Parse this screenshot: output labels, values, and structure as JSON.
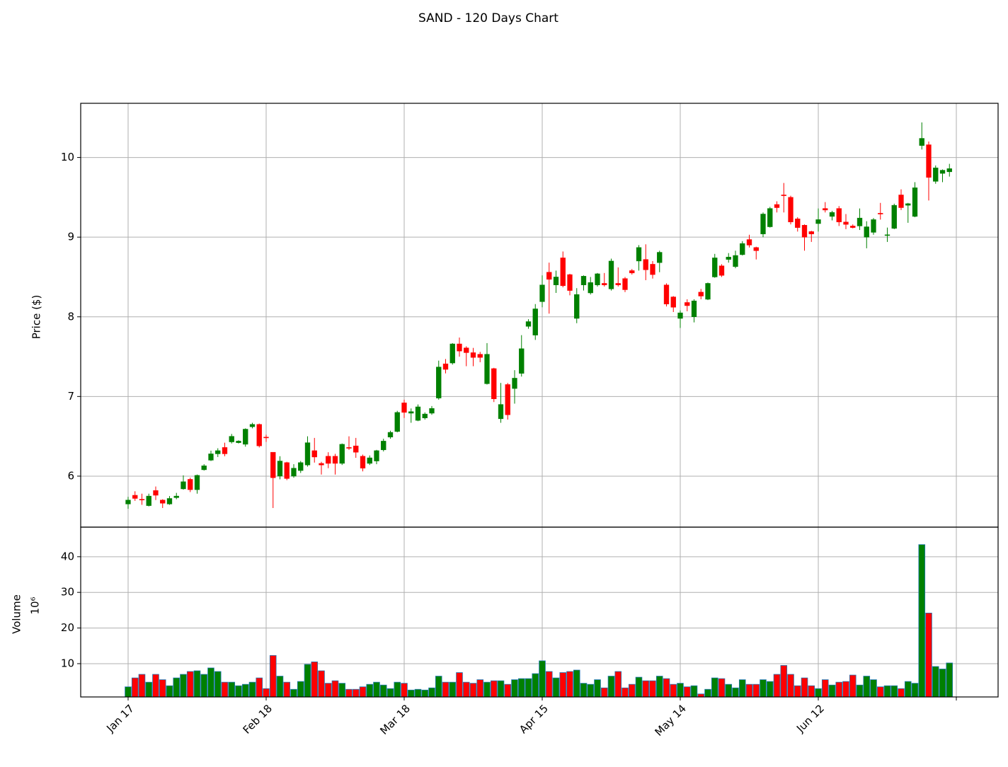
{
  "chart_data": [
    {
      "type": "candlestick",
      "title": "SAND - 120 Days Chart",
      "ylabel": "Price ($)",
      "open": [
        5.65,
        5.76,
        5.71,
        5.63,
        5.82,
        5.7,
        5.65,
        5.73,
        5.84,
        5.96,
        5.83,
        6.08,
        6.2,
        6.28,
        6.36,
        6.43,
        6.42,
        6.4,
        6.62,
        6.65,
        6.49,
        6.3,
        6.0,
        6.17,
        6.0,
        6.07,
        6.14,
        6.32,
        6.16,
        6.25,
        6.25,
        6.16,
        6.36,
        6.38,
        6.25,
        6.16,
        6.19,
        6.33,
        6.49,
        6.56,
        6.92,
        6.79,
        6.7,
        6.73,
        6.79,
        6.98,
        7.41,
        7.42,
        7.66,
        7.61,
        7.55,
        7.53,
        7.16,
        7.35,
        6.72,
        7.15,
        7.1,
        7.29,
        7.88,
        7.77,
        8.19,
        8.56,
        8.4,
        8.74,
        8.53,
        7.98,
        8.4,
        8.3,
        8.4,
        8.42,
        8.35,
        8.42,
        8.48,
        8.58,
        8.7,
        8.72,
        8.66,
        8.68,
        8.4,
        8.25,
        7.98,
        8.18,
        8.0,
        8.31,
        8.22,
        8.5,
        8.64,
        8.72,
        8.63,
        8.78,
        8.97,
        8.87,
        9.04,
        9.13,
        9.41,
        9.53,
        9.5,
        9.23,
        9.15,
        9.07,
        9.17,
        9.36,
        9.26,
        9.36,
        9.19,
        9.14,
        9.14,
        9.0,
        9.06,
        9.3,
        9.02,
        9.11,
        9.53,
        9.4,
        9.26,
        10.15,
        10.16,
        9.7,
        9.8,
        9.82
      ],
      "high": [
        5.74,
        5.81,
        5.78,
        5.78,
        5.87,
        5.71,
        5.75,
        5.79,
        6.01,
        5.98,
        6.02,
        6.15,
        6.32,
        6.35,
        6.42,
        6.53,
        6.45,
        6.6,
        6.67,
        6.66,
        6.52,
        6.3,
        6.25,
        6.18,
        6.15,
        6.19,
        6.5,
        6.48,
        6.18,
        6.3,
        6.28,
        6.41,
        6.5,
        6.48,
        6.27,
        6.26,
        6.33,
        6.47,
        6.57,
        6.82,
        6.96,
        6.85,
        6.9,
        6.8,
        6.88,
        7.45,
        7.47,
        7.67,
        7.74,
        7.63,
        7.61,
        7.56,
        7.67,
        7.36,
        7.17,
        7.17,
        7.33,
        7.77,
        7.97,
        8.16,
        8.52,
        8.68,
        8.58,
        8.82,
        8.54,
        8.36,
        8.52,
        8.5,
        8.55,
        8.55,
        8.73,
        8.62,
        8.5,
        8.6,
        8.9,
        8.91,
        8.7,
        8.83,
        8.42,
        8.26,
        8.08,
        8.22,
        8.22,
        8.35,
        8.43,
        8.79,
        8.66,
        8.8,
        8.83,
        8.95,
        9.03,
        8.88,
        9.31,
        9.38,
        9.45,
        9.68,
        9.52,
        9.25,
        9.16,
        9.08,
        9.36,
        9.44,
        9.33,
        9.39,
        9.29,
        9.16,
        9.36,
        9.2,
        9.24,
        9.43,
        9.12,
        9.42,
        9.6,
        9.43,
        9.69,
        10.44,
        10.2,
        9.9,
        9.85,
        9.92
      ],
      "low": [
        5.59,
        5.69,
        5.64,
        5.62,
        5.7,
        5.6,
        5.64,
        5.71,
        5.83,
        5.8,
        5.78,
        6.07,
        6.19,
        6.24,
        6.25,
        6.41,
        6.41,
        6.37,
        6.6,
        6.36,
        6.43,
        5.6,
        5.96,
        5.95,
        5.98,
        6.04,
        6.12,
        6.17,
        6.02,
        6.1,
        6.02,
        6.14,
        6.33,
        6.23,
        6.06,
        6.14,
        6.15,
        6.31,
        6.47,
        6.55,
        6.73,
        6.67,
        6.69,
        6.71,
        6.77,
        6.96,
        7.29,
        7.4,
        7.5,
        7.38,
        7.38,
        7.43,
        7.15,
        6.93,
        6.67,
        6.71,
        6.91,
        7.25,
        7.85,
        7.71,
        8.12,
        8.04,
        8.3,
        8.37,
        8.27,
        7.92,
        8.33,
        8.28,
        8.38,
        8.38,
        8.33,
        8.38,
        8.31,
        8.53,
        8.58,
        8.46,
        8.48,
        8.56,
        8.13,
        8.06,
        7.86,
        8.07,
        7.93,
        8.22,
        8.21,
        8.49,
        8.5,
        8.68,
        8.61,
        8.77,
        8.87,
        8.72,
        9.0,
        9.12,
        9.31,
        9.31,
        9.16,
        9.07,
        8.83,
        8.94,
        9.07,
        9.31,
        9.21,
        9.14,
        9.1,
        9.11,
        9.09,
        8.86,
        9.03,
        9.22,
        8.94,
        9.1,
        9.34,
        9.18,
        9.25,
        10.1,
        9.46,
        9.67,
        9.69,
        9.76
      ],
      "close": [
        5.7,
        5.72,
        5.7,
        5.75,
        5.76,
        5.66,
        5.72,
        5.75,
        5.93,
        5.83,
        6.01,
        6.13,
        6.28,
        6.32,
        6.28,
        6.5,
        6.44,
        6.59,
        6.65,
        6.38,
        6.48,
        5.98,
        6.19,
        5.97,
        6.1,
        6.17,
        6.42,
        6.24,
        6.14,
        6.16,
        6.16,
        6.4,
        6.35,
        6.3,
        6.1,
        6.23,
        6.32,
        6.44,
        6.55,
        6.8,
        6.8,
        6.81,
        6.87,
        6.78,
        6.85,
        7.37,
        7.34,
        7.66,
        7.57,
        7.55,
        7.49,
        7.49,
        7.53,
        6.97,
        6.9,
        6.77,
        7.23,
        7.6,
        7.94,
        8.1,
        8.4,
        8.47,
        8.5,
        8.39,
        8.33,
        8.28,
        8.51,
        8.43,
        8.54,
        8.4,
        8.7,
        8.4,
        8.34,
        8.55,
        8.87,
        8.59,
        8.53,
        8.81,
        8.16,
        8.12,
        8.05,
        8.14,
        8.2,
        8.26,
        8.42,
        8.74,
        8.52,
        8.75,
        8.77,
        8.92,
        8.9,
        8.83,
        9.29,
        9.36,
        9.37,
        9.52,
        9.19,
        9.12,
        9.0,
        9.04,
        9.22,
        9.34,
        9.31,
        9.19,
        9.16,
        9.12,
        9.24,
        9.13,
        9.22,
        9.29,
        9.03,
        9.4,
        9.37,
        9.42,
        9.62,
        10.24,
        9.75,
        9.87,
        9.84,
        9.86
      ],
      "up_color": "green",
      "down_color": "red",
      "xlim": [
        -6.87,
        126.05
      ],
      "xticks": [
        {
          "value": 0,
          "label": "Jan 17"
        },
        {
          "value": 20,
          "label": "Feb 18"
        },
        {
          "value": 40,
          "label": "Mar 18"
        },
        {
          "value": 60,
          "label": "Apr 15"
        },
        {
          "value": 80,
          "label": "May 14"
        },
        {
          "value": 100,
          "label": "Jun 12"
        },
        {
          "value": 120,
          "label": null
        }
      ],
      "ylim": [
        5.36,
        10.68
      ],
      "yticks": [
        6,
        7,
        8,
        9,
        10
      ],
      "grid": true
    },
    {
      "type": "bar",
      "ylabel": "Volume",
      "offset_label": "10⁶",
      "values": [
        3.5,
        6,
        7,
        4.8,
        7,
        5.5,
        3.8,
        6,
        7,
        7.8,
        8,
        7,
        8.8,
        7.8,
        4.8,
        4.8,
        3.8,
        4.2,
        4.8,
        6,
        3,
        12.3,
        6.5,
        4.8,
        2.8,
        5,
        9.8,
        10.5,
        8,
        4.5,
        5.2,
        4.5,
        2.8,
        2.8,
        3.5,
        4.2,
        4.8,
        4,
        3,
        4.8,
        4.5,
        2.6,
        2.8,
        2.6,
        3.2,
        6.5,
        4.8,
        4.8,
        7.5,
        4.8,
        4.5,
        5.5,
        4.8,
        5.2,
        5.2,
        4.2,
        5.5,
        5.8,
        5.8,
        7.2,
        10.8,
        7.8,
        6,
        7.5,
        7.8,
        8.2,
        4.5,
        4.2,
        5.5,
        3.2,
        6.5,
        7.8,
        3.2,
        4.2,
        6.2,
        5.2,
        5.2,
        6.5,
        5.8,
        4.2,
        4.5,
        3.5,
        3.8,
        1.5,
        2.8,
        6,
        5.8,
        4.2,
        3.2,
        5.5,
        4.2,
        4.2,
        5.5,
        5,
        7,
        9.5,
        7,
        3.8,
        6,
        3.8,
        3,
        5.5,
        4,
        4.8,
        5,
        6.8,
        4,
        6.5,
        5.5,
        3.5,
        3.8,
        3.8,
        3,
        5,
        4.5,
        43.4,
        24.2,
        9.2,
        8.5,
        10.2
      ],
      "edge_color": "#1f77b4",
      "ylim": [
        0.66,
        48.3
      ],
      "yticks": [
        10,
        20,
        30,
        40
      ],
      "grid": true
    }
  ]
}
